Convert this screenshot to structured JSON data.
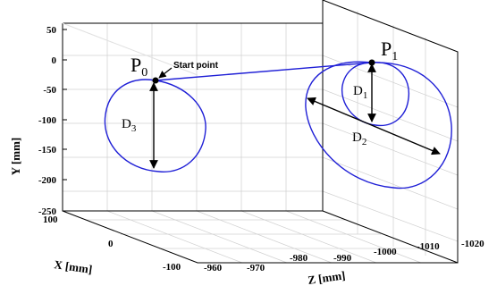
{
  "figure": {
    "y_axis": {
      "label": "Y [mm]",
      "ticks": [
        "50",
        "0",
        "-50",
        "-100",
        "-150",
        "-200",
        "-250"
      ]
    },
    "x_axis": {
      "label": "X [mm]",
      "ticks": [
        "100",
        "0",
        "-100"
      ]
    },
    "z_axis": {
      "label": "Z [mm]",
      "ticks": [
        "-960",
        "-970",
        "-980",
        "-990",
        "-1000",
        "-1010",
        "-1020"
      ]
    },
    "points": [
      {
        "main": "P",
        "sub": "0"
      },
      {
        "main": "P",
        "sub": "1"
      }
    ],
    "start_annotation": "Start point",
    "dimensions": [
      {
        "main": "D",
        "sub": "1"
      },
      {
        "main": "D",
        "sub": "2"
      },
      {
        "main": "D",
        "sub": "3"
      }
    ],
    "colors": {
      "trajectory": "#1f1fd6",
      "grid": "#d0d0d0",
      "frame": "#000000"
    }
  }
}
